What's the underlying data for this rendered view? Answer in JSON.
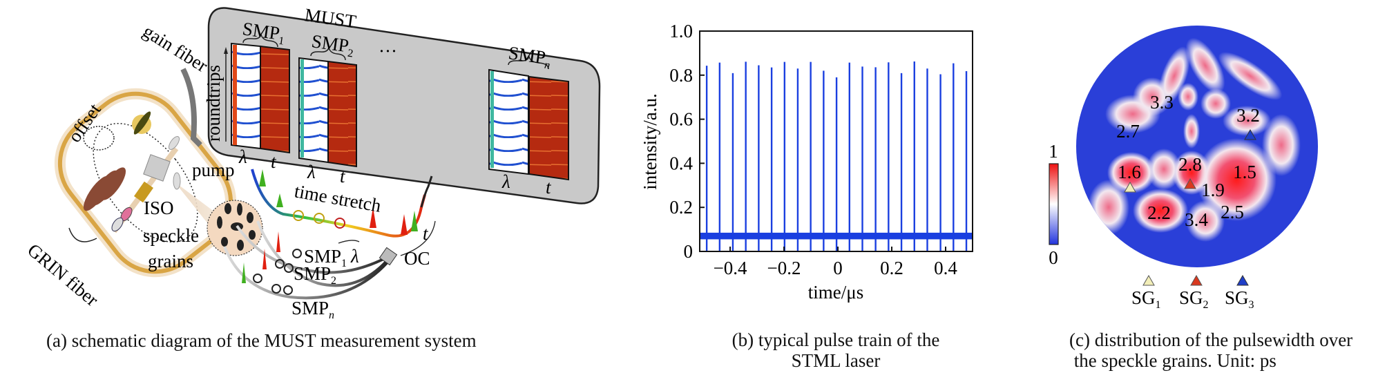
{
  "panel_a": {
    "caption": "(a) schematic diagram of the MUST measurement system",
    "must": "MUST",
    "smp1": "SMP",
    "smp1_sub": "1",
    "smp2": "SMP",
    "smp2_sub": "2",
    "smpn": "SMP",
    "smpn_sub": "n",
    "ellipsis": "···",
    "roundtrips": "roundtrips",
    "lambda": "λ",
    "t": "t",
    "time_stretch": "time stretch",
    "gain_fiber": "gain fiber",
    "offset": "offset",
    "grin_fiber": "GRIN fiber",
    "pump": "pump",
    "iso": "ISO",
    "speckle": "speckle",
    "grains": "grains",
    "oc": "OC"
  },
  "panel_b": {
    "caption_line1": "(b) typical pulse train of the",
    "caption_line2": "STML laser"
  },
  "panel_c": {
    "caption_line1": "(c) distribution of the pulsewidth over",
    "caption_line2": " the speckle grains. Unit: ps",
    "colorbar_max": "1",
    "colorbar_min": "0",
    "pulsewidths": [
      "3.3",
      "3.2",
      "2.7",
      "1.6",
      "2.8",
      "1.5",
      "1.9",
      "2.2",
      "3.4",
      "2.5"
    ],
    "legend": [
      {
        "label": "SG",
        "sub": "1",
        "color": "#f2eeb8"
      },
      {
        "label": "SG",
        "sub": "2",
        "color": "#d9381e"
      },
      {
        "label": "SG",
        "sub": "3",
        "color": "#1f3fc8"
      }
    ],
    "map_colors": {
      "low": "#2a3fd8",
      "mid": "#ffffff",
      "high": "#ff1a1a"
    }
  },
  "chart_data": {
    "type": "line",
    "title": "",
    "xlabel": "time/μs",
    "ylabel": "intensity/a.u.",
    "xlim": [
      -0.513,
      0.5
    ],
    "ylim": [
      0,
      1.0
    ],
    "xticks": [
      -0.4,
      -0.2,
      0,
      0.2,
      0.4
    ],
    "xtick_labels": [
      "−0.4",
      "−0.2",
      "0",
      "0.2",
      "0.4"
    ],
    "yticks": [
      0,
      0.2,
      0.4,
      0.6,
      0.8,
      1.0
    ],
    "ytick_labels": [
      "0",
      "0.2",
      "0.4",
      "0.6",
      "0.8",
      "1.0"
    ],
    "grid": false,
    "color": "#1a3fe0",
    "baseline": 0.07,
    "series": [
      {
        "name": "pulse train",
        "pulse_x": [
          -0.487,
          -0.439,
          -0.39,
          -0.342,
          -0.294,
          -0.246,
          -0.198,
          -0.149,
          -0.101,
          -0.053,
          -0.005,
          0.043,
          0.091,
          0.14,
          0.188,
          0.236,
          0.284,
          0.332,
          0.381,
          0.429,
          0.477
        ],
        "pulse_peak": [
          0.843,
          0.857,
          0.809,
          0.861,
          0.845,
          0.835,
          0.86,
          0.83,
          0.86,
          0.82,
          0.79,
          0.857,
          0.839,
          0.836,
          0.858,
          0.809,
          0.862,
          0.83,
          0.804,
          0.854,
          0.818
        ]
      }
    ]
  }
}
